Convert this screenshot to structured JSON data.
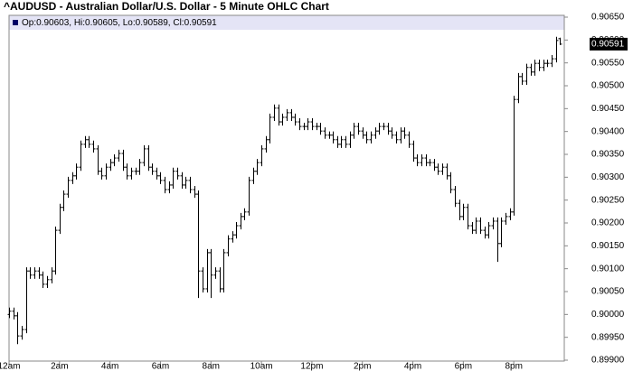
{
  "chart_data": {
    "type": "ohlc",
    "title": "^AUDUSD - Australian Dollar/U.S. Dollar - 5 Minute OHLC Chart",
    "header": "Op:0.90603, Hi:0.90605, Lo:0.90589, Cl:0.90591",
    "color": "#000000",
    "x": [
      0,
      10,
      20,
      30,
      40,
      50,
      60,
      70,
      80,
      90,
      100,
      110,
      120,
      130,
      140,
      150,
      160,
      170,
      180,
      190,
      200,
      210,
      220,
      230,
      240,
      250,
      260,
      270,
      280,
      290,
      300,
      310,
      320,
      330,
      340,
      350,
      360,
      370,
      380,
      390,
      400,
      410,
      420,
      430,
      440,
      450,
      460,
      470,
      480,
      490,
      500,
      510,
      520,
      530,
      540,
      550,
      560,
      570,
      580,
      590,
      600,
      610,
      620,
      630,
      640,
      650,
      660,
      670,
      680,
      690,
      700,
      710,
      720,
      730,
      740,
      750,
      760,
      770,
      780,
      790,
      800,
      810,
      820,
      830,
      840,
      850,
      860,
      870,
      880,
      890,
      900,
      910,
      920,
      930,
      940,
      950,
      960,
      970,
      980,
      990,
      1000,
      1010,
      1020,
      1030,
      1040,
      1050,
      1060,
      1070,
      1080,
      1090,
      1100,
      1110,
      1120,
      1130,
      1140,
      1150,
      1160,
      1170,
      1180,
      1190,
      1200,
      1210,
      1220,
      1230,
      1240,
      1250,
      1260,
      1270,
      1280,
      1290,
      1300,
      1310
    ],
    "open": [
      0.9,
      0.90007,
      0.89997,
      0.89953,
      0.89967,
      0.90095,
      0.90086,
      0.90095,
      0.90086,
      0.90066,
      0.90076,
      0.90095,
      0.90184,
      0.90234,
      0.90263,
      0.90293,
      0.90303,
      0.90322,
      0.90372,
      0.90382,
      0.90372,
      0.90362,
      0.90313,
      0.90303,
      0.90322,
      0.90332,
      0.90342,
      0.90352,
      0.90322,
      0.90303,
      0.90313,
      0.90313,
      0.90332,
      0.90362,
      0.90322,
      0.90313,
      0.90303,
      0.90293,
      0.90273,
      0.90283,
      0.90313,
      0.90303,
      0.90283,
      0.90293,
      0.90273,
      0.90263,
      0.90095,
      0.90056,
      0.90135,
      0.90086,
      0.90095,
      0.90056,
      0.90135,
      0.90165,
      0.90174,
      0.90194,
      0.90214,
      0.90224,
      0.90293,
      0.90313,
      0.90332,
      0.90362,
      0.90382,
      0.90431,
      0.90451,
      0.90421,
      0.90431,
      0.90441,
      0.90431,
      0.90421,
      0.90411,
      0.90411,
      0.90421,
      0.90411,
      0.90411,
      0.90401,
      0.90392,
      0.90392,
      0.90382,
      0.90372,
      0.90382,
      0.90372,
      0.90392,
      0.90411,
      0.90401,
      0.90392,
      0.90382,
      0.90392,
      0.90401,
      0.90411,
      0.90411,
      0.90401,
      0.90392,
      0.90382,
      0.90401,
      0.90392,
      0.90372,
      0.90342,
      0.90332,
      0.90342,
      0.90332,
      0.90332,
      0.90322,
      0.90313,
      0.90322,
      0.90303,
      0.90273,
      0.90243,
      0.90214,
      0.90234,
      0.90194,
      0.90184,
      0.90204,
      0.90184,
      0.90174,
      0.90194,
      0.90204,
      0.90155,
      0.90204,
      0.90214,
      0.90224,
      0.9047,
      0.9052,
      0.9051,
      0.9054,
      0.9053,
      0.90549,
      0.9054,
      0.90549,
      0.90549,
      0.90559,
      0.90603
    ],
    "high": [
      0.90015,
      0.90015,
      0.90005,
      0.89975,
      0.90103,
      0.90103,
      0.90103,
      0.90103,
      0.90094,
      0.90084,
      0.90103,
      0.90192,
      0.90242,
      0.90271,
      0.90301,
      0.90311,
      0.9033,
      0.9038,
      0.9039,
      0.9039,
      0.9038,
      0.9037,
      0.90321,
      0.9033,
      0.9034,
      0.9035,
      0.9036,
      0.9036,
      0.9033,
      0.90321,
      0.90321,
      0.9034,
      0.9037,
      0.9037,
      0.9033,
      0.90321,
      0.90311,
      0.90301,
      0.90291,
      0.90321,
      0.90321,
      0.90311,
      0.90301,
      0.90301,
      0.90281,
      0.90271,
      0.90103,
      0.90143,
      0.90143,
      0.90103,
      0.90103,
      0.90143,
      0.90173,
      0.90182,
      0.90202,
      0.90222,
      0.90232,
      0.90301,
      0.90321,
      0.9034,
      0.9037,
      0.9039,
      0.90439,
      0.90459,
      0.90459,
      0.90439,
      0.90449,
      0.90449,
      0.90439,
      0.90429,
      0.90419,
      0.90429,
      0.90429,
      0.90419,
      0.90419,
      0.90409,
      0.904,
      0.904,
      0.9039,
      0.9039,
      0.9039,
      0.904,
      0.90419,
      0.90419,
      0.90409,
      0.904,
      0.904,
      0.90409,
      0.90419,
      0.90419,
      0.90419,
      0.90409,
      0.904,
      0.90409,
      0.90409,
      0.904,
      0.9038,
      0.9035,
      0.9035,
      0.9035,
      0.9034,
      0.9034,
      0.9033,
      0.9033,
      0.9033,
      0.90311,
      0.90281,
      0.90251,
      0.90242,
      0.90242,
      0.90202,
      0.90212,
      0.90212,
      0.90192,
      0.90202,
      0.90212,
      0.90212,
      0.90212,
      0.90222,
      0.90232,
      0.90478,
      0.90528,
      0.90528,
      0.90548,
      0.90548,
      0.90557,
      0.90557,
      0.90557,
      0.90557,
      0.90567,
      0.90607,
      0.90605
    ],
    "low": [
      0.89992,
      0.89989,
      0.89935,
      0.89945,
      0.89959,
      0.90078,
      0.90078,
      0.90078,
      0.90058,
      0.90058,
      0.90068,
      0.90087,
      0.90176,
      0.90226,
      0.90255,
      0.90285,
      0.90295,
      0.90314,
      0.90364,
      0.90364,
      0.90354,
      0.90305,
      0.90295,
      0.90295,
      0.90314,
      0.90324,
      0.90334,
      0.90314,
      0.90295,
      0.90295,
      0.90305,
      0.90305,
      0.90324,
      0.90314,
      0.90305,
      0.90295,
      0.90285,
      0.90265,
      0.90265,
      0.90275,
      0.90295,
      0.90275,
      0.90275,
      0.90265,
      0.90255,
      0.90036,
      0.90048,
      0.90048,
      0.90036,
      0.90078,
      0.90048,
      0.90048,
      0.90127,
      0.90157,
      0.90166,
      0.90186,
      0.90206,
      0.90216,
      0.90285,
      0.90305,
      0.90324,
      0.90354,
      0.90374,
      0.90423,
      0.90413,
      0.90413,
      0.90423,
      0.90423,
      0.90413,
      0.90403,
      0.90403,
      0.90403,
      0.90403,
      0.90403,
      0.90393,
      0.90384,
      0.90384,
      0.90374,
      0.90364,
      0.90364,
      0.90364,
      0.90364,
      0.90384,
      0.90393,
      0.90384,
      0.90374,
      0.90374,
      0.90384,
      0.90393,
      0.90403,
      0.90393,
      0.90384,
      0.90374,
      0.90374,
      0.90384,
      0.90364,
      0.90334,
      0.90324,
      0.90324,
      0.90324,
      0.90324,
      0.90314,
      0.90305,
      0.90305,
      0.90295,
      0.90265,
      0.90235,
      0.90206,
      0.90206,
      0.90186,
      0.90176,
      0.90176,
      0.90176,
      0.90166,
      0.90166,
      0.90186,
      0.90115,
      0.90147,
      0.90196,
      0.90206,
      0.90216,
      0.90462,
      0.90502,
      0.90502,
      0.90522,
      0.90522,
      0.90532,
      0.90532,
      0.90541,
      0.90541,
      0.90551,
      0.90589
    ],
    "close": [
      0.90007,
      0.89997,
      0.89953,
      0.89967,
      0.90095,
      0.90086,
      0.90095,
      0.90086,
      0.90066,
      0.90076,
      0.90095,
      0.90184,
      0.90234,
      0.90263,
      0.90293,
      0.90303,
      0.90322,
      0.90372,
      0.90382,
      0.90372,
      0.90362,
      0.90313,
      0.90303,
      0.90322,
      0.90332,
      0.90342,
      0.90352,
      0.90322,
      0.90303,
      0.90313,
      0.90313,
      0.90332,
      0.90362,
      0.90322,
      0.90313,
      0.90303,
      0.90293,
      0.90273,
      0.90283,
      0.90313,
      0.90303,
      0.90283,
      0.90293,
      0.90273,
      0.90263,
      0.90095,
      0.90056,
      0.90135,
      0.90086,
      0.90095,
      0.90056,
      0.90135,
      0.90165,
      0.90174,
      0.90194,
      0.90214,
      0.90224,
      0.90293,
      0.90313,
      0.90332,
      0.90362,
      0.90382,
      0.90431,
      0.90451,
      0.90421,
      0.90431,
      0.90441,
      0.90431,
      0.90421,
      0.90411,
      0.90411,
      0.90421,
      0.90411,
      0.90411,
      0.90401,
      0.90392,
      0.90392,
      0.90382,
      0.90372,
      0.90382,
      0.90372,
      0.90392,
      0.90411,
      0.90401,
      0.90392,
      0.90382,
      0.90392,
      0.90401,
      0.90411,
      0.90411,
      0.90401,
      0.90392,
      0.90382,
      0.90401,
      0.90392,
      0.90372,
      0.90342,
      0.90332,
      0.90342,
      0.90332,
      0.90332,
      0.90322,
      0.90313,
      0.90322,
      0.90303,
      0.90273,
      0.90243,
      0.90214,
      0.90234,
      0.90194,
      0.90184,
      0.90204,
      0.90184,
      0.90174,
      0.90194,
      0.90204,
      0.90155,
      0.90204,
      0.90214,
      0.90224,
      0.9047,
      0.9052,
      0.9051,
      0.9054,
      0.9053,
      0.90549,
      0.9054,
      0.90549,
      0.90549,
      0.90559,
      0.90599,
      0.90591
    ],
    "xlim": [
      0,
      1320
    ],
    "xticks": [
      {
        "value": 0,
        "label": "12am"
      },
      {
        "value": 120,
        "label": "2am"
      },
      {
        "value": 240,
        "label": "4am"
      },
      {
        "value": 360,
        "label": "6am"
      },
      {
        "value": 480,
        "label": "8am"
      },
      {
        "value": 600,
        "label": "10am"
      },
      {
        "value": 720,
        "label": "12pm"
      },
      {
        "value": 840,
        "label": "2pm"
      },
      {
        "value": 960,
        "label": "4pm"
      },
      {
        "value": 1080,
        "label": "6pm"
      },
      {
        "value": 1200,
        "label": "8pm"
      }
    ],
    "ylim": [
      0.899,
      0.9065
    ],
    "yticks": [
      {
        "value": 0.899,
        "label": "0.89900"
      },
      {
        "value": 0.8995,
        "label": "0.89950"
      },
      {
        "value": 0.9,
        "label": "0.90000"
      },
      {
        "value": 0.9005,
        "label": "0.90050"
      },
      {
        "value": 0.901,
        "label": "0.90100"
      },
      {
        "value": 0.9015,
        "label": "0.90150"
      },
      {
        "value": 0.902,
        "label": "0.90200"
      },
      {
        "value": 0.9025,
        "label": "0.90250"
      },
      {
        "value": 0.903,
        "label": "0.90300"
      },
      {
        "value": 0.9035,
        "label": "0.90350"
      },
      {
        "value": 0.904,
        "label": "0.90400"
      },
      {
        "value": 0.9045,
        "label": "0.90450"
      },
      {
        "value": 0.905,
        "label": "0.90500"
      },
      {
        "value": 0.9055,
        "label": "0.90550"
      },
      {
        "value": 0.906,
        "label": "0.90600"
      },
      {
        "value": 0.9065,
        "label": "0.90650"
      }
    ],
    "last_price": {
      "value": 0.90591,
      "label": "0.90591"
    },
    "grid": false
  }
}
